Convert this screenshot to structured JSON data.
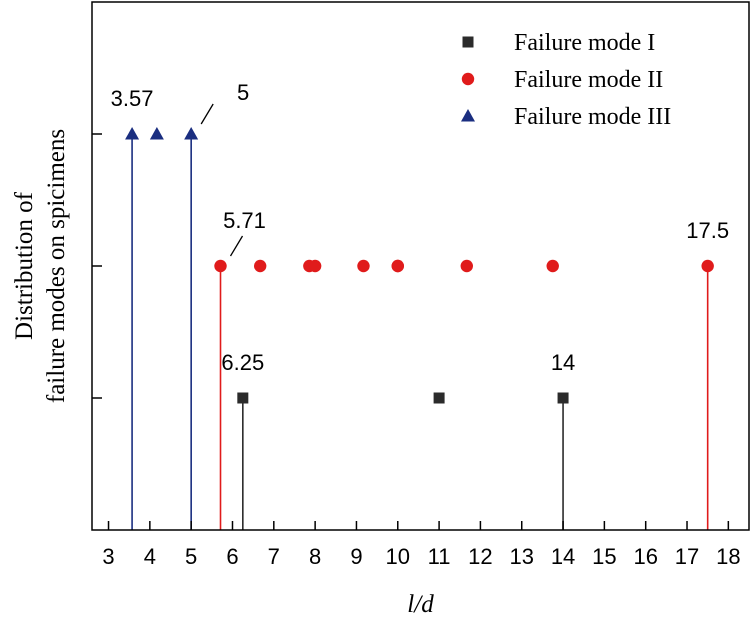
{
  "chart_data": {
    "type": "scatter",
    "title": "",
    "xlabel": "l/d",
    "ylabel_line1": "Distribution of",
    "ylabel_line2": "failure modes on spicimens",
    "xlim": [
      2.6,
      18.5
    ],
    "x_ticks": [
      3,
      4,
      5,
      6,
      7,
      8,
      9,
      10,
      11,
      12,
      13,
      14,
      15,
      16,
      17,
      18
    ],
    "x_tick_labels": [
      "3",
      "4",
      "5",
      "6",
      "7",
      "8",
      "9",
      "10",
      "11",
      "12",
      "13",
      "14",
      "15",
      "16",
      "17",
      "18"
    ],
    "ylim": [
      0,
      4
    ],
    "y_ticks": [
      1,
      2,
      3
    ],
    "legend_position": "top-right",
    "series": [
      {
        "name": "Failure mode I",
        "marker": "square",
        "color": "#2b2b2b",
        "level": 1,
        "x": [
          6.25,
          11,
          14
        ],
        "stems": [
          6.25,
          14
        ]
      },
      {
        "name": "Failure mode II",
        "marker": "circle",
        "color": "#e01b1b",
        "level": 2,
        "x": [
          5.71,
          6.67,
          7.86,
          8.0,
          9.17,
          10.0,
          10.0,
          11.67,
          13.75,
          17.5
        ],
        "stems": [
          5.71,
          17.5
        ]
      },
      {
        "name": "Failure mode III",
        "marker": "triangle",
        "color": "#1a2e80",
        "level": 3,
        "x": [
          3.57,
          4.17,
          5.0
        ],
        "stems": [
          3.57,
          5.0
        ]
      }
    ],
    "annotations": [
      {
        "text": "3.57",
        "x": 3.57,
        "level": 3,
        "leader": false
      },
      {
        "text": "5",
        "x": 5.0,
        "level": 3,
        "leader": true
      },
      {
        "text": "5.71",
        "x": 5.71,
        "level": 2,
        "leader": true
      },
      {
        "text": "17.5",
        "x": 17.5,
        "level": 2,
        "leader": false
      },
      {
        "text": "6.25",
        "x": 6.25,
        "level": 1,
        "leader": false
      },
      {
        "text": "14",
        "x": 14,
        "level": 1,
        "leader": false
      }
    ]
  }
}
